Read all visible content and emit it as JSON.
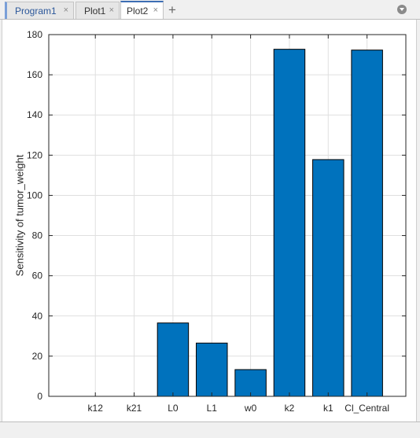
{
  "tabs": [
    {
      "label": "Program1",
      "close": "×"
    },
    {
      "label": "Plot1",
      "close": "×"
    },
    {
      "label": "Plot2",
      "close": "×"
    }
  ],
  "new_tab_symbol": "+",
  "colors": {
    "bar": "#0072bd",
    "tab_accent": "#3c6db3"
  },
  "chart_data": {
    "type": "bar",
    "categories": [
      "k12",
      "k21",
      "L0",
      "L1",
      "w0",
      "k2",
      "k1",
      "Cl_Central"
    ],
    "values": [
      0,
      0,
      36.5,
      26.5,
      13.3,
      172.7,
      117.8,
      172.3
    ],
    "ylabel": "Sensitivity of tumor_weight",
    "xlabel": "",
    "ylim": [
      0,
      180
    ],
    "yticks": [
      0,
      20,
      40,
      60,
      80,
      100,
      120,
      140,
      160,
      180
    ],
    "grid": true
  }
}
